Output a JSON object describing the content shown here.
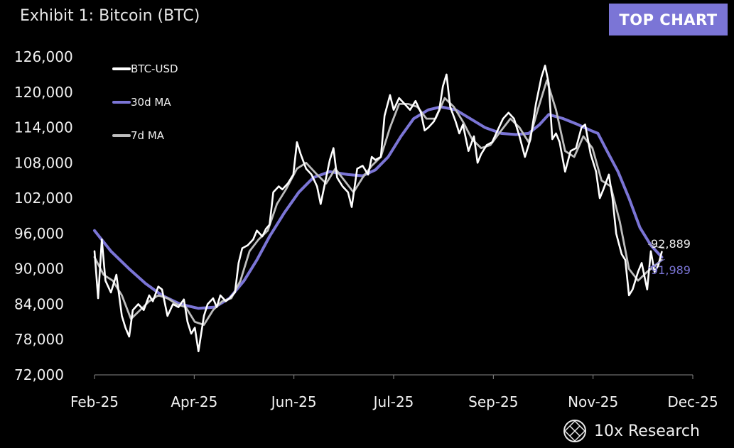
{
  "header": {
    "title": "Exhibit 1: Bitcoin (BTC)",
    "badge": "TOP CHART"
  },
  "brand": {
    "name": "10x Research"
  },
  "colors": {
    "background": "#000000",
    "btc": "#ffffff",
    "ma30": "#7b75d6",
    "ma7": "#bdbdbd",
    "badge": "#7b75d6"
  },
  "chart_data": {
    "type": "line",
    "x_ticks": [
      "Feb-25",
      "Apr-25",
      "Jun-25",
      "Jul-25",
      "Sep-25",
      "Nov-25",
      "Dec-25"
    ],
    "y_ticks": [
      "72,000",
      "78,000",
      "84,000",
      "90,000",
      "96,000",
      "102,000",
      "108,000",
      "114,000",
      "120,000",
      "126,000"
    ],
    "ylim": [
      72000,
      126000
    ],
    "legend_position": "top-left",
    "end_labels": {
      "btc": "92,889",
      "ma30": "91,989"
    },
    "series": [
      {
        "name": "BTC-USD",
        "color": "#ffffff",
        "points": [
          [
            "2025-02-01",
            93000
          ],
          [
            "2025-02-03",
            85000
          ],
          [
            "2025-02-05",
            95000
          ],
          [
            "2025-02-07",
            88000
          ],
          [
            "2025-02-10",
            86000
          ],
          [
            "2025-02-13",
            89000
          ],
          [
            "2025-02-16",
            82000
          ],
          [
            "2025-02-18",
            80000
          ],
          [
            "2025-02-20",
            78500
          ],
          [
            "2025-02-22",
            83000
          ],
          [
            "2025-02-25",
            84000
          ],
          [
            "2025-02-28",
            83000
          ],
          [
            "2025-03-03",
            85500
          ],
          [
            "2025-03-05",
            84500
          ],
          [
            "2025-03-08",
            87000
          ],
          [
            "2025-03-10",
            86500
          ],
          [
            "2025-03-13",
            82000
          ],
          [
            "2025-03-16",
            84000
          ],
          [
            "2025-03-19",
            83500
          ],
          [
            "2025-03-22",
            84800
          ],
          [
            "2025-03-24",
            81000
          ],
          [
            "2025-03-26",
            79000
          ],
          [
            "2025-03-28",
            80000
          ],
          [
            "2025-03-30",
            76000
          ],
          [
            "2025-04-02",
            82000
          ],
          [
            "2025-04-04",
            84000
          ],
          [
            "2025-04-07",
            85000
          ],
          [
            "2025-04-09",
            83500
          ],
          [
            "2025-04-11",
            85500
          ],
          [
            "2025-04-14",
            84500
          ],
          [
            "2025-04-16",
            85000
          ],
          [
            "2025-04-19",
            86000
          ],
          [
            "2025-04-21",
            91000
          ],
          [
            "2025-04-23",
            93500
          ],
          [
            "2025-04-26",
            94000
          ],
          [
            "2025-04-29",
            95000
          ],
          [
            "2025-05-01",
            96500
          ],
          [
            "2025-05-04",
            95500
          ],
          [
            "2025-05-06",
            96800
          ],
          [
            "2025-05-08",
            97500
          ],
          [
            "2025-05-10",
            103000
          ],
          [
            "2025-05-13",
            104000
          ],
          [
            "2025-05-15",
            103500
          ],
          [
            "2025-05-18",
            104500
          ],
          [
            "2025-05-21",
            106000
          ],
          [
            "2025-05-23",
            111500
          ],
          [
            "2025-05-25",
            109500
          ],
          [
            "2025-05-28",
            107000
          ],
          [
            "2025-05-31",
            106000
          ],
          [
            "2025-06-03",
            104000
          ],
          [
            "2025-06-05",
            101000
          ],
          [
            "2025-06-08",
            105500
          ],
          [
            "2025-06-10",
            108500
          ],
          [
            "2025-06-12",
            110500
          ],
          [
            "2025-06-14",
            105500
          ],
          [
            "2025-06-17",
            104000
          ],
          [
            "2025-06-20",
            103000
          ],
          [
            "2025-06-22",
            100500
          ],
          [
            "2025-06-25",
            107000
          ],
          [
            "2025-06-28",
            107500
          ],
          [
            "2025-07-01",
            106000
          ],
          [
            "2025-07-03",
            109000
          ],
          [
            "2025-07-05",
            108500
          ],
          [
            "2025-07-08",
            109000
          ],
          [
            "2025-07-10",
            116000
          ],
          [
            "2025-07-13",
            119500
          ],
          [
            "2025-07-15",
            117000
          ],
          [
            "2025-07-18",
            119000
          ],
          [
            "2025-07-21",
            118000
          ],
          [
            "2025-07-24",
            117000
          ],
          [
            "2025-07-27",
            118500
          ],
          [
            "2025-07-30",
            116500
          ],
          [
            "2025-08-01",
            113500
          ],
          [
            "2025-08-03",
            114000
          ],
          [
            "2025-08-06",
            115000
          ],
          [
            "2025-08-09",
            117000
          ],
          [
            "2025-08-11",
            121000
          ],
          [
            "2025-08-13",
            123000
          ],
          [
            "2025-08-15",
            117500
          ],
          [
            "2025-08-18",
            115000
          ],
          [
            "2025-08-20",
            113000
          ],
          [
            "2025-08-22",
            114500
          ],
          [
            "2025-08-25",
            110000
          ],
          [
            "2025-08-28",
            112500
          ],
          [
            "2025-08-30",
            108000
          ],
          [
            "2025-09-01",
            109500
          ],
          [
            "2025-09-04",
            111000
          ],
          [
            "2025-09-07",
            111500
          ],
          [
            "2025-09-10",
            113500
          ],
          [
            "2025-09-13",
            115500
          ],
          [
            "2025-09-16",
            116500
          ],
          [
            "2025-09-19",
            115500
          ],
          [
            "2025-09-22",
            112500
          ],
          [
            "2025-09-25",
            109000
          ],
          [
            "2025-09-28",
            112000
          ],
          [
            "2025-10-01",
            118000
          ],
          [
            "2025-10-04",
            122500
          ],
          [
            "2025-10-06",
            124500
          ],
          [
            "2025-10-08",
            121500
          ],
          [
            "2025-10-10",
            112000
          ],
          [
            "2025-10-12",
            113000
          ],
          [
            "2025-10-14",
            111500
          ],
          [
            "2025-10-17",
            106500
          ],
          [
            "2025-10-20",
            110000
          ],
          [
            "2025-10-23",
            110500
          ],
          [
            "2025-10-26",
            114000
          ],
          [
            "2025-10-28",
            114500
          ],
          [
            "2025-10-31",
            109500
          ],
          [
            "2025-11-03",
            106500
          ],
          [
            "2025-11-05",
            102000
          ],
          [
            "2025-11-07",
            103500
          ],
          [
            "2025-11-10",
            106000
          ],
          [
            "2025-11-12",
            102000
          ],
          [
            "2025-11-14",
            96000
          ],
          [
            "2025-11-17",
            92500
          ],
          [
            "2025-11-19",
            91500
          ],
          [
            "2025-11-21",
            85500
          ],
          [
            "2025-11-23",
            86500
          ],
          [
            "2025-11-26",
            89500
          ],
          [
            "2025-11-28",
            91000
          ],
          [
            "2025-12-01",
            86500
          ],
          [
            "2025-12-03",
            93000
          ],
          [
            "2025-12-05",
            89500
          ],
          [
            "2025-12-07",
            90500
          ],
          [
            "2025-12-09",
            92889
          ]
        ]
      },
      {
        "name": "30d MA",
        "color": "#7b75d6",
        "points": [
          [
            "2025-02-01",
            96500
          ],
          [
            "2025-02-10",
            93000
          ],
          [
            "2025-02-20",
            90000
          ],
          [
            "2025-03-01",
            87500
          ],
          [
            "2025-03-10",
            85500
          ],
          [
            "2025-03-20",
            84000
          ],
          [
            "2025-03-30",
            83300
          ],
          [
            "2025-04-08",
            83500
          ],
          [
            "2025-04-16",
            85000
          ],
          [
            "2025-04-24",
            88000
          ],
          [
            "2025-05-01",
            91500
          ],
          [
            "2025-05-08",
            95500
          ],
          [
            "2025-05-16",
            99500
          ],
          [
            "2025-05-24",
            103000
          ],
          [
            "2025-06-01",
            105500
          ],
          [
            "2025-06-10",
            106500
          ],
          [
            "2025-06-20",
            106000
          ],
          [
            "2025-06-28",
            105800
          ],
          [
            "2025-07-05",
            106800
          ],
          [
            "2025-07-12",
            109000
          ],
          [
            "2025-07-19",
            112500
          ],
          [
            "2025-07-26",
            115500
          ],
          [
            "2025-08-03",
            117000
          ],
          [
            "2025-08-10",
            117500
          ],
          [
            "2025-08-18",
            117000
          ],
          [
            "2025-08-26",
            115500
          ],
          [
            "2025-09-03",
            114000
          ],
          [
            "2025-09-12",
            113000
          ],
          [
            "2025-09-20",
            112800
          ],
          [
            "2025-09-27",
            113000
          ],
          [
            "2025-10-03",
            114500
          ],
          [
            "2025-10-08",
            116200
          ],
          [
            "2025-10-16",
            115500
          ],
          [
            "2025-10-24",
            114500
          ],
          [
            "2025-10-31",
            113500
          ],
          [
            "2025-11-04",
            113000
          ],
          [
            "2025-11-09",
            110000
          ],
          [
            "2025-11-15",
            106500
          ],
          [
            "2025-11-21",
            102000
          ],
          [
            "2025-11-27",
            97000
          ],
          [
            "2025-12-03",
            94000
          ],
          [
            "2025-12-09",
            91989
          ]
        ]
      },
      {
        "name": "7d MA",
        "color": "#bdbdbd",
        "points": [
          [
            "2025-02-01",
            92000
          ],
          [
            "2025-02-06",
            89000
          ],
          [
            "2025-02-11",
            88000
          ],
          [
            "2025-02-16",
            85500
          ],
          [
            "2025-02-21",
            81500
          ],
          [
            "2025-02-26",
            83000
          ],
          [
            "2025-03-03",
            84500
          ],
          [
            "2025-03-08",
            85500
          ],
          [
            "2025-03-13",
            85000
          ],
          [
            "2025-03-18",
            84000
          ],
          [
            "2025-03-23",
            83500
          ],
          [
            "2025-03-28",
            81000
          ],
          [
            "2025-04-02",
            80500
          ],
          [
            "2025-04-07",
            83000
          ],
          [
            "2025-04-12",
            84500
          ],
          [
            "2025-04-17",
            85000
          ],
          [
            "2025-04-22",
            88000
          ],
          [
            "2025-04-27",
            93000
          ],
          [
            "2025-05-02",
            95000
          ],
          [
            "2025-05-07",
            96500
          ],
          [
            "2025-05-12",
            101000
          ],
          [
            "2025-05-17",
            103500
          ],
          [
            "2025-05-23",
            107000
          ],
          [
            "2025-05-28",
            108000
          ],
          [
            "2025-06-03",
            106000
          ],
          [
            "2025-06-08",
            104500
          ],
          [
            "2025-06-13",
            107000
          ],
          [
            "2025-06-18",
            105000
          ],
          [
            "2025-06-23",
            103000
          ],
          [
            "2025-06-28",
            105500
          ],
          [
            "2025-07-03",
            107500
          ],
          [
            "2025-07-08",
            109000
          ],
          [
            "2025-07-13",
            114000
          ],
          [
            "2025-07-18",
            118000
          ],
          [
            "2025-07-23",
            118000
          ],
          [
            "2025-07-28",
            117500
          ],
          [
            "2025-08-02",
            115500
          ],
          [
            "2025-08-07",
            115500
          ],
          [
            "2025-08-12",
            119000
          ],
          [
            "2025-08-17",
            117500
          ],
          [
            "2025-08-22",
            115000
          ],
          [
            "2025-08-27",
            112000
          ],
          [
            "2025-09-01",
            110500
          ],
          [
            "2025-09-06",
            111000
          ],
          [
            "2025-09-12",
            113500
          ],
          [
            "2025-09-17",
            115500
          ],
          [
            "2025-09-22",
            114000
          ],
          [
            "2025-09-27",
            111500
          ],
          [
            "2025-10-02",
            117000
          ],
          [
            "2025-10-07",
            122000
          ],
          [
            "2025-10-12",
            117000
          ],
          [
            "2025-10-17",
            110000
          ],
          [
            "2025-10-22",
            109000
          ],
          [
            "2025-10-27",
            112500
          ],
          [
            "2025-11-01",
            110500
          ],
          [
            "2025-11-06",
            105000
          ],
          [
            "2025-11-11",
            104000
          ],
          [
            "2025-11-16",
            98000
          ],
          [
            "2025-11-21",
            90000
          ],
          [
            "2025-11-26",
            88000
          ],
          [
            "2025-12-01",
            89500
          ],
          [
            "2025-12-05",
            90500
          ],
          [
            "2025-12-09",
            91500
          ]
        ]
      }
    ]
  }
}
